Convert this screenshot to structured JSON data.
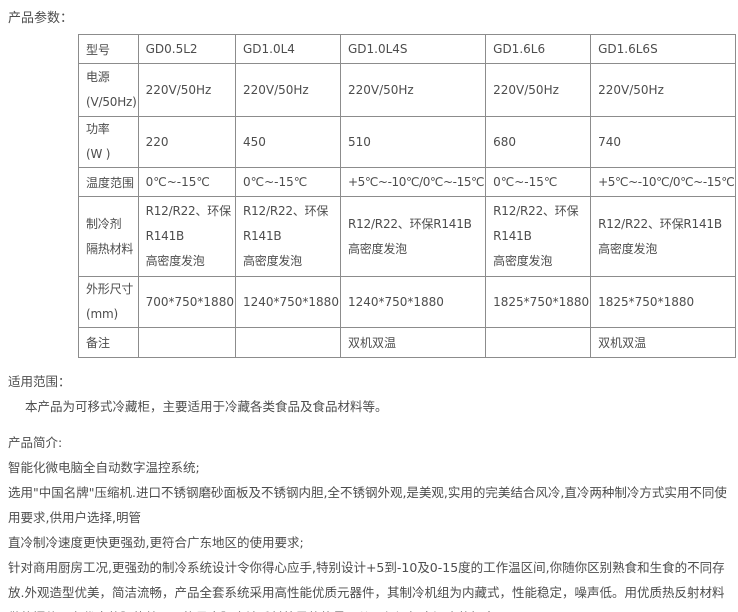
{
  "page": {
    "bg_color": "#ffffff",
    "text_color": "#4d4d4d",
    "border_color": "#8c8c8c"
  },
  "params_section": {
    "title": "产品参数：",
    "table": {
      "header": [
        "型号",
        "GD0.5L2",
        "GD1.0L4",
        "GD1.0L4S",
        "GD1.6L6",
        "GD1.6L6S"
      ],
      "rows": [
        {
          "label": "电源\n(V/50Hz)",
          "cells": [
            "220V/50Hz",
            "220V/50Hz",
            "220V/50Hz",
            "220V/50Hz",
            "220V/50Hz"
          ]
        },
        {
          "label": "功率\n(W )",
          "cells": [
            "220",
            "450",
            "510",
            "680",
            "740"
          ]
        },
        {
          "label": "温度范围",
          "cells": [
            "0℃~-15℃",
            "0℃~-15℃",
            "+5℃~-10℃/0℃~-15℃",
            "0℃~-15℃",
            "+5℃~-10℃/0℃~-15℃"
          ]
        },
        {
          "label": "制冷剂\n隔热材料",
          "cells": [
            "R12/R22、环保R141B\n高密度发泡",
            "R12/R22、环保R141B\n高密度发泡",
            "R12/R22、环保R141B\n高密度发泡",
            "R12/R22、环保R141B\n高密度发泡",
            "R12/R22、环保R141B\n高密度发泡"
          ]
        },
        {
          "label": "外形尺寸\n(mm)",
          "cells": [
            "700*750*1880",
            "1240*750*1880",
            "1240*750*1880",
            "1825*750*1880",
            "1825*750*1880"
          ]
        },
        {
          "label": "备注",
          "cells": [
            "",
            "",
            "双机双温",
            "",
            "双机双温"
          ]
        }
      ]
    }
  },
  "scope_section": {
    "title": "适用范围：",
    "body": "本产品为可移式冷藏柜，主要适用于冷藏各类食品及食品材料等。"
  },
  "intro_section": {
    "title": "产品简介:",
    "paragraphs": [
      "智能化微电脑全自动数字温控系统;",
      "选用\"中国名牌\"压缩机.进口不锈钢磨砂面板及不锈钢内胆,全不锈钢外观,是美观,实用的完美结合风冷,直冷两种制冷方式实用不同使用要求,供用户选择,明管",
      "直冷制冷速度更快更强劲,更符合广东地区的使用要求;",
      "针对商用厨房工况,更强劲的制冷系统设计令你得心应手,特别设计+5到-10及0-15度的工作温区间,你随你区别熟食和生食的不同存放.外观造型优美，简洁流畅，产品全套系统采用高性能优质元器件，其制冷机组为内藏式，性能稳定，噪声低。用优质热反射材料做的门体具有优良的隔热效果，能最大限度地反射外界的热量，从而保证柜内温度的恒定。"
    ]
  }
}
